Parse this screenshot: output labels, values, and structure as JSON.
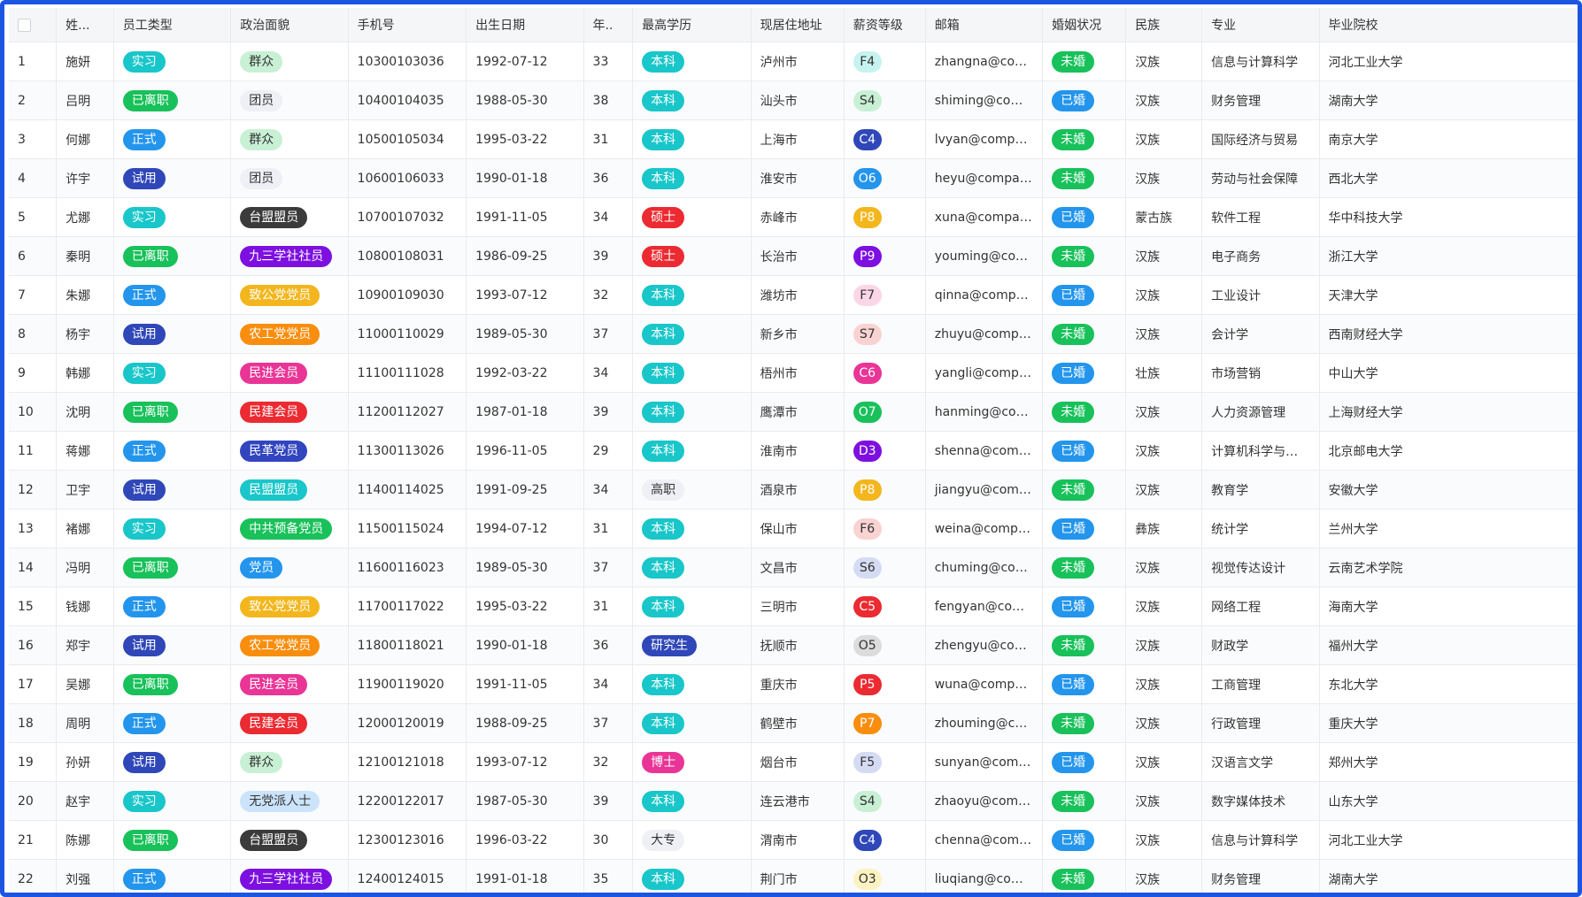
{
  "columns": [
    {
      "key": "checkbox",
      "label": ""
    },
    {
      "key": "name",
      "label": "姓..."
    },
    {
      "key": "type",
      "label": "员工类型"
    },
    {
      "key": "political",
      "label": "政治面貌"
    },
    {
      "key": "phone",
      "label": "手机号"
    },
    {
      "key": "birth",
      "label": "出生日期"
    },
    {
      "key": "age",
      "label": "年.."
    },
    {
      "key": "edu",
      "label": "最高学历"
    },
    {
      "key": "city",
      "label": "现居住地址"
    },
    {
      "key": "salary",
      "label": "薪资等级"
    },
    {
      "key": "email",
      "label": "邮箱"
    },
    {
      "key": "marital",
      "label": "婚姻状况"
    },
    {
      "key": "ethnic",
      "label": "民族"
    },
    {
      "key": "major",
      "label": "专业"
    },
    {
      "key": "school",
      "label": "毕业院校"
    }
  ],
  "tag_colors": {
    "实习": {
      "bg": "#19c6c9",
      "fg": "#ffffff"
    },
    "已离职": {
      "bg": "#18c15a",
      "fg": "#ffffff"
    },
    "正式": {
      "bg": "#2395ec",
      "fg": "#ffffff"
    },
    "试用": {
      "bg": "#2f47b8",
      "fg": "#ffffff"
    },
    "群众": {
      "bg": "#c8f0d5",
      "fg": "#333333"
    },
    "团员": {
      "bg": "#eef0f6",
      "fg": "#333333"
    },
    "台盟盟员": {
      "bg": "#3b3b3b",
      "fg": "#ffffff"
    },
    "九三学社社员": {
      "bg": "#7d10e0",
      "fg": "#ffffff"
    },
    "致公党党员": {
      "bg": "#f3b61c",
      "fg": "#ffffff"
    },
    "农工党党员": {
      "bg": "#f98e0e",
      "fg": "#ffffff"
    },
    "民进会员": {
      "bg": "#e93596",
      "fg": "#ffffff"
    },
    "民建会员": {
      "bg": "#ec2a31",
      "fg": "#ffffff"
    },
    "民革党员": {
      "bg": "#3245bf",
      "fg": "#ffffff"
    },
    "民盟盟员": {
      "bg": "#19c6c9",
      "fg": "#ffffff"
    },
    "中共预备党员": {
      "bg": "#18c15a",
      "fg": "#ffffff"
    },
    "党员": {
      "bg": "#2395ec",
      "fg": "#ffffff"
    },
    "无党派人士": {
      "bg": "#cbe4fb",
      "fg": "#333333"
    },
    "本科": {
      "bg": "#19c6c9",
      "fg": "#ffffff"
    },
    "硕士": {
      "bg": "#ec2a31",
      "fg": "#ffffff"
    },
    "高职": {
      "bg": "#eef0f6",
      "fg": "#333333"
    },
    "研究生": {
      "bg": "#2f47b8",
      "fg": "#ffffff"
    },
    "博士": {
      "bg": "#e93596",
      "fg": "#ffffff"
    },
    "大专": {
      "bg": "#eef0f6",
      "fg": "#333333"
    },
    "未婚": {
      "bg": "#18c15a",
      "fg": "#ffffff"
    },
    "已婚": {
      "bg": "#2395ec",
      "fg": "#ffffff"
    },
    "F4": {
      "bg": "#c6f2f0",
      "fg": "#333333"
    },
    "S4": {
      "bg": "#c8f0d5",
      "fg": "#333333"
    },
    "C4": {
      "bg": "#2f47b8",
      "fg": "#ffffff"
    },
    "O6": {
      "bg": "#2395ec",
      "fg": "#ffffff"
    },
    "P8": {
      "bg": "#f3b61c",
      "fg": "#ffffff"
    },
    "P9": {
      "bg": "#7d10e0",
      "fg": "#ffffff"
    },
    "F7": {
      "bg": "#fbd6e6",
      "fg": "#333333"
    },
    "S7": {
      "bg": "#f9d2d2",
      "fg": "#333333"
    },
    "C6": {
      "bg": "#e93596",
      "fg": "#ffffff"
    },
    "O7": {
      "bg": "#18c15a",
      "fg": "#ffffff"
    },
    "D3": {
      "bg": "#7d10e0",
      "fg": "#ffffff"
    },
    "F6": {
      "bg": "#f9d2d2",
      "fg": "#333333"
    },
    "S6": {
      "bg": "#d5dbf3",
      "fg": "#333333"
    },
    "C5": {
      "bg": "#ec2a31",
      "fg": "#ffffff"
    },
    "O5": {
      "bg": "#dcdcdc",
      "fg": "#333333"
    },
    "P5": {
      "bg": "#ec2a31",
      "fg": "#ffffff"
    },
    "P7": {
      "bg": "#f98e0e",
      "fg": "#ffffff"
    },
    "F5": {
      "bg": "#d5dbf3",
      "fg": "#333333"
    },
    "O3": {
      "bg": "#fdf2c2",
      "fg": "#333333"
    }
  },
  "rows": [
    {
      "idx": "1",
      "name": "施妍",
      "type": "实习",
      "political": "群众",
      "phone": "10300103036",
      "birth": "1992-07-12",
      "age": "33",
      "edu": "本科",
      "city": "泸州市",
      "salary": "F4",
      "email": "zhangna@compan...",
      "marital": "未婚",
      "ethnic": "汉族",
      "major": "信息与计算科学",
      "school": "河北工业大学"
    },
    {
      "idx": "2",
      "name": "吕明",
      "type": "已离职",
      "political": "团员",
      "phone": "10400104035",
      "birth": "1988-05-30",
      "age": "38",
      "edu": "本科",
      "city": "汕头市",
      "salary": "S4",
      "email": "shiming@compan...",
      "marital": "已婚",
      "ethnic": "汉族",
      "major": "财务管理",
      "school": "湖南大学"
    },
    {
      "idx": "3",
      "name": "何娜",
      "type": "正式",
      "political": "群众",
      "phone": "10500105034",
      "birth": "1995-03-22",
      "age": "31",
      "edu": "本科",
      "city": "上海市",
      "salary": "C4",
      "email": "lvyan@company.c...",
      "marital": "未婚",
      "ethnic": "汉族",
      "major": "国际经济与贸易",
      "school": "南京大学"
    },
    {
      "idx": "4",
      "name": "许宇",
      "type": "试用",
      "political": "团员",
      "phone": "10600106033",
      "birth": "1990-01-18",
      "age": "36",
      "edu": "本科",
      "city": "淮安市",
      "salary": "O6",
      "email": "heyu@company.co...",
      "marital": "未婚",
      "ethnic": "汉族",
      "major": "劳动与社会保障",
      "school": "西北大学"
    },
    {
      "idx": "5",
      "name": "尤娜",
      "type": "实习",
      "political": "台盟盟员",
      "phone": "10700107032",
      "birth": "1991-11-05",
      "age": "34",
      "edu": "硕士",
      "city": "赤峰市",
      "salary": "P8",
      "email": "xuna@company.co...",
      "marital": "已婚",
      "ethnic": "蒙古族",
      "major": "软件工程",
      "school": "华中科技大学"
    },
    {
      "idx": "6",
      "name": "秦明",
      "type": "已离职",
      "political": "九三学社社员",
      "phone": "10800108031",
      "birth": "1986-09-25",
      "age": "39",
      "edu": "硕士",
      "city": "长治市",
      "salary": "P9",
      "email": "youming@compa...",
      "marital": "未婚",
      "ethnic": "汉族",
      "major": "电子商务",
      "school": "浙江大学"
    },
    {
      "idx": "7",
      "name": "朱娜",
      "type": "正式",
      "political": "致公党党员",
      "phone": "10900109030",
      "birth": "1993-07-12",
      "age": "32",
      "edu": "本科",
      "city": "潍坊市",
      "salary": "F7",
      "email": "qinna@company.c...",
      "marital": "已婚",
      "ethnic": "汉族",
      "major": "工业设计",
      "school": "天津大学"
    },
    {
      "idx": "8",
      "name": "杨宇",
      "type": "试用",
      "political": "农工党党员",
      "phone": "11000110029",
      "birth": "1989-05-30",
      "age": "37",
      "edu": "本科",
      "city": "新乡市",
      "salary": "S7",
      "email": "zhuyu@company.c...",
      "marital": "未婚",
      "ethnic": "汉族",
      "major": "会计学",
      "school": "西南财经大学"
    },
    {
      "idx": "9",
      "name": "韩娜",
      "type": "实习",
      "political": "民进会员",
      "phone": "11100111028",
      "birth": "1992-03-22",
      "age": "34",
      "edu": "本科",
      "city": "梧州市",
      "salary": "C6",
      "email": "yangli@company.c...",
      "marital": "已婚",
      "ethnic": "壮族",
      "major": "市场营销",
      "school": "中山大学"
    },
    {
      "idx": "10",
      "name": "沈明",
      "type": "已离职",
      "political": "民建会员",
      "phone": "11200112027",
      "birth": "1987-01-18",
      "age": "39",
      "edu": "本科",
      "city": "鹰潭市",
      "salary": "O7",
      "email": "hanming@compa...",
      "marital": "未婚",
      "ethnic": "汉族",
      "major": "人力资源管理",
      "school": "上海财经大学"
    },
    {
      "idx": "11",
      "name": "蒋娜",
      "type": "正式",
      "political": "民革党员",
      "phone": "11300113026",
      "birth": "1996-11-05",
      "age": "29",
      "edu": "本科",
      "city": "淮南市",
      "salary": "D3",
      "email": "shenna@company....",
      "marital": "已婚",
      "ethnic": "汉族",
      "major": "计算机科学与技术",
      "school": "北京邮电大学"
    },
    {
      "idx": "12",
      "name": "卫宇",
      "type": "试用",
      "political": "民盟盟员",
      "phone": "11400114025",
      "birth": "1991-09-25",
      "age": "34",
      "edu": "高职",
      "city": "酒泉市",
      "salary": "P8",
      "email": "jiangyu@company....",
      "marital": "未婚",
      "ethnic": "汉族",
      "major": "教育学",
      "school": "安徽大学"
    },
    {
      "idx": "13",
      "name": "褚娜",
      "type": "实习",
      "political": "中共预备党员",
      "phone": "11500115024",
      "birth": "1994-07-12",
      "age": "31",
      "edu": "本科",
      "city": "保山市",
      "salary": "F6",
      "email": "weina@company.c...",
      "marital": "已婚",
      "ethnic": "彝族",
      "major": "统计学",
      "school": "兰州大学"
    },
    {
      "idx": "14",
      "name": "冯明",
      "type": "已离职",
      "political": "党员",
      "phone": "11600116023",
      "birth": "1989-05-30",
      "age": "37",
      "edu": "本科",
      "city": "文昌市",
      "salary": "S6",
      "email": "chuming@compan...",
      "marital": "未婚",
      "ethnic": "汉族",
      "major": "视觉传达设计",
      "school": "云南艺术学院"
    },
    {
      "idx": "15",
      "name": "钱娜",
      "type": "正式",
      "political": "致公党党员",
      "phone": "11700117022",
      "birth": "1995-03-22",
      "age": "31",
      "edu": "本科",
      "city": "三明市",
      "salary": "C5",
      "email": "fengyan@compan...",
      "marital": "已婚",
      "ethnic": "汉族",
      "major": "网络工程",
      "school": "海南大学"
    },
    {
      "idx": "16",
      "name": "郑宇",
      "type": "试用",
      "political": "农工党党员",
      "phone": "11800118021",
      "birth": "1990-01-18",
      "age": "36",
      "edu": "研究生",
      "city": "抚顺市",
      "salary": "O5",
      "email": "zhengyu@compan...",
      "marital": "未婚",
      "ethnic": "汉族",
      "major": "财政学",
      "school": "福州大学"
    },
    {
      "idx": "17",
      "name": "吴娜",
      "type": "已离职",
      "political": "民进会员",
      "phone": "11900119020",
      "birth": "1991-11-05",
      "age": "34",
      "edu": "本科",
      "city": "重庆市",
      "salary": "P5",
      "email": "wuna@company.c...",
      "marital": "已婚",
      "ethnic": "汉族",
      "major": "工商管理",
      "school": "东北大学"
    },
    {
      "idx": "18",
      "name": "周明",
      "type": "正式",
      "political": "民建会员",
      "phone": "12000120019",
      "birth": "1988-09-25",
      "age": "37",
      "edu": "本科",
      "city": "鹤壁市",
      "salary": "P7",
      "email": "zhouming@compa...",
      "marital": "未婚",
      "ethnic": "汉族",
      "major": "行政管理",
      "school": "重庆大学"
    },
    {
      "idx": "19",
      "name": "孙妍",
      "type": "试用",
      "political": "群众",
      "phone": "12100121018",
      "birth": "1993-07-12",
      "age": "32",
      "edu": "博士",
      "city": "烟台市",
      "salary": "F5",
      "email": "sunyan@company....",
      "marital": "已婚",
      "ethnic": "汉族",
      "major": "汉语言文学",
      "school": "郑州大学"
    },
    {
      "idx": "20",
      "name": "赵宇",
      "type": "实习",
      "political": "无党派人士",
      "phone": "12200122017",
      "birth": "1987-05-30",
      "age": "39",
      "edu": "本科",
      "city": "连云港市",
      "salary": "S4",
      "email": "zhaoyu@company....",
      "marital": "未婚",
      "ethnic": "汉族",
      "major": "数字媒体技术",
      "school": "山东大学"
    },
    {
      "idx": "21",
      "name": "陈娜",
      "type": "已离职",
      "political": "台盟盟员",
      "phone": "12300123016",
      "birth": "1996-03-22",
      "age": "30",
      "edu": "大专",
      "city": "渭南市",
      "salary": "C4",
      "email": "chenna@company....",
      "marital": "已婚",
      "ethnic": "汉族",
      "major": "信息与计算科学",
      "school": "河北工业大学"
    },
    {
      "idx": "22",
      "name": "刘强",
      "type": "正式",
      "political": "九三学社社员",
      "phone": "12400124015",
      "birth": "1991-01-18",
      "age": "35",
      "edu": "本科",
      "city": "荆门市",
      "salary": "O3",
      "email": "liuqiang@compan...",
      "marital": "未婚",
      "ethnic": "汉族",
      "major": "财务管理",
      "school": "湖南大学"
    }
  ]
}
